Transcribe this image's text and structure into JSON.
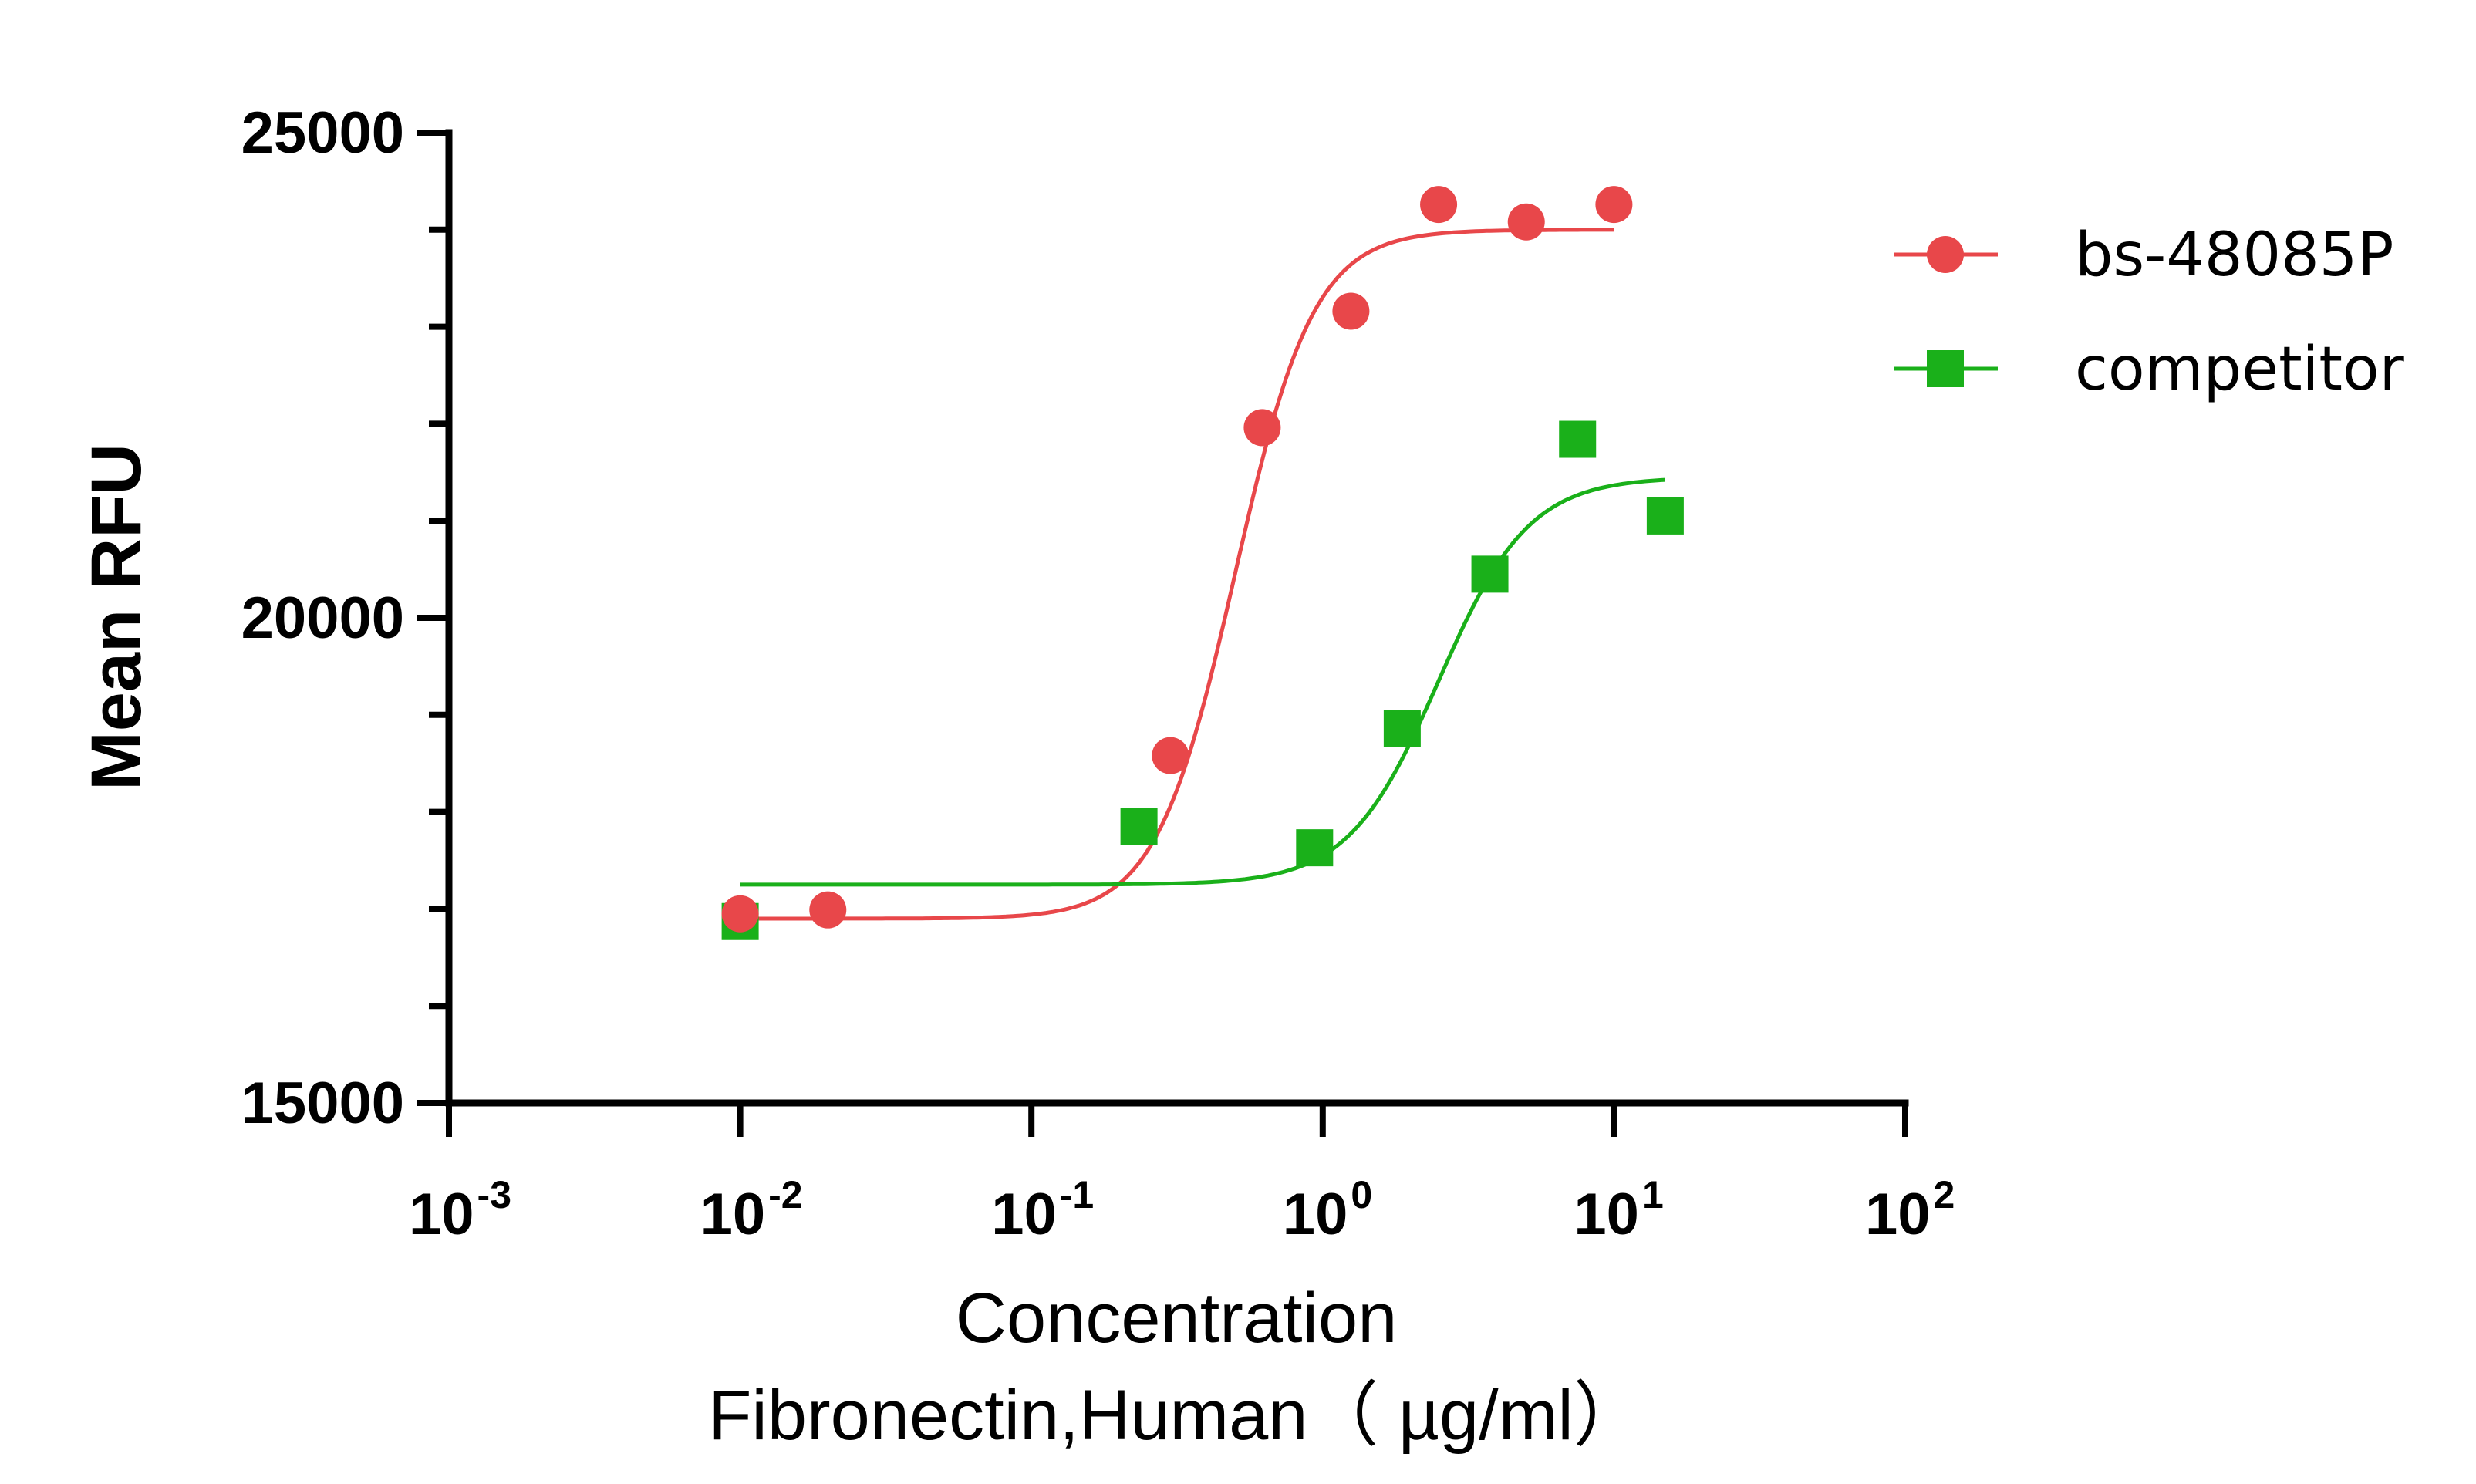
{
  "chart_data": {
    "type": "scatter",
    "title": "",
    "xlabel": "Concentration",
    "xlabel_line2": "Fibronectin,Human（ µg/ml）",
    "ylabel": "Mean RFU",
    "xscale": "log",
    "xlim": [
      0.001,
      100
    ],
    "ylim": [
      15000,
      25000
    ],
    "x_ticks": [
      {
        "base": "10",
        "exp": "-3",
        "value": 0.001
      },
      {
        "base": "10",
        "exp": "-2",
        "value": 0.01
      },
      {
        "base": "10",
        "exp": "-1",
        "value": 0.1
      },
      {
        "base": "10",
        "exp": "0",
        "value": 1
      },
      {
        "base": "10",
        "exp": "1",
        "value": 10
      },
      {
        "base": "10",
        "exp": "2",
        "value": 100
      }
    ],
    "y_ticks": [
      15000,
      20000,
      25000
    ],
    "y_tick_labels": [
      "15000",
      "20000",
      "25000"
    ],
    "grid": false,
    "legend_position": "top-right",
    "series": [
      {
        "name": "bs-48085P",
        "color": "#e8474a",
        "marker": "circle",
        "x": [
          0.01,
          0.02,
          0.3,
          0.62,
          1.25,
          2.5,
          5,
          10
        ],
        "y": [
          16950,
          16990,
          18580,
          21960,
          23160,
          24260,
          24080,
          24260
        ],
        "fit": {
          "bottom": 16900,
          "top": 24000,
          "ec50": 0.5,
          "hill": 3.2,
          "x_range": [
            0.01,
            10
          ]
        }
      },
      {
        "name": "competitor",
        "color": "#1ab01a",
        "marker": "square",
        "x": [
          0.01,
          0.234,
          0.938,
          1.875,
          3.75,
          7.5,
          15
        ],
        "y": [
          16870,
          17850,
          17630,
          18860,
          20450,
          21840,
          21050
        ],
        "fit": {
          "bottom": 17250,
          "top": 21450,
          "ec50": 2.5,
          "hill": 2.8,
          "x_range": [
            0.01,
            15
          ]
        }
      }
    ]
  }
}
